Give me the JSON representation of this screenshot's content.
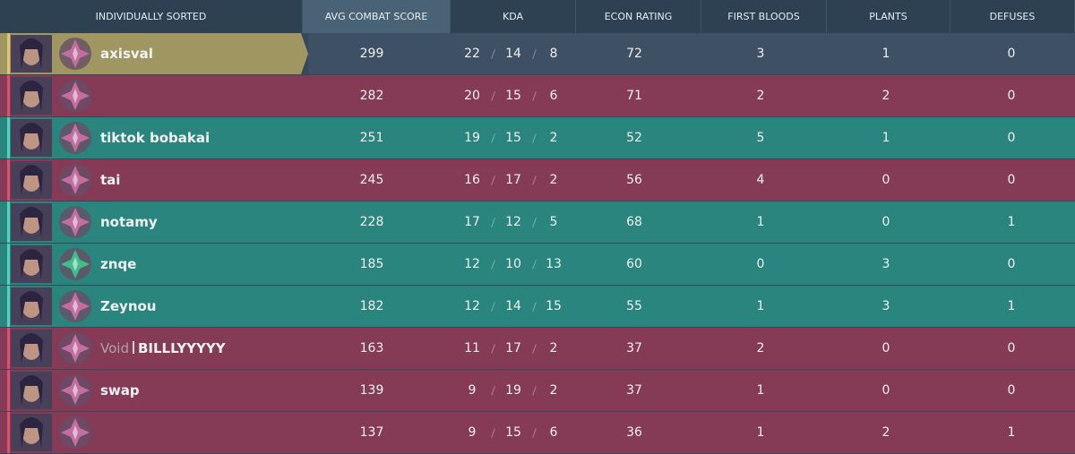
{
  "header": {
    "columns": [
      "INDIVIDUALLY SORTED",
      "AVG COMBAT SCORE",
      "KDA",
      "ECON RATING",
      "FIRST BLOODS",
      "PLANTS",
      "DEFUSES"
    ]
  },
  "rows": [
    {
      "name": "axisval",
      "acs": 299,
      "kda": [
        22,
        14,
        8
      ],
      "econ": 72,
      "first_bloods": 3,
      "plants": 1,
      "defuses": 0,
      "color": "#a89c62"
    },
    {
      "name": null,
      "acs": 282,
      "kda": [
        20,
        15,
        6
      ],
      "econ": 71,
      "first_bloods": 2,
      "plants": 2,
      "defuses": 0,
      "color": "#8c3a55"
    },
    {
      "name": "tiktok bobakai",
      "acs": 251,
      "kda": [
        19,
        15,
        2
      ],
      "econ": 52,
      "first_bloods": 5,
      "plants": 1,
      "defuses": 0,
      "color": "#2a8a82"
    },
    {
      "name": "tai",
      "acs": 245,
      "kda": [
        16,
        17,
        2
      ],
      "econ": 56,
      "first_bloods": 4,
      "plants": 0,
      "defuses": 0,
      "color": "#8c3a55"
    },
    {
      "name": "notamy",
      "acs": 228,
      "kda": [
        17,
        12,
        5
      ],
      "econ": 68,
      "first_bloods": 1,
      "plants": 0,
      "defuses": 1,
      "color": "#2a8a82"
    },
    {
      "name": "znqe",
      "acs": 185,
      "kda": [
        12,
        10,
        13
      ],
      "econ": 60,
      "first_bloods": 0,
      "plants": 3,
      "defuses": 0,
      "color": "#2a8a82"
    },
    {
      "name": "Zeynou",
      "acs": 182,
      "kda": [
        12,
        14,
        15
      ],
      "econ": 55,
      "first_bloods": 1,
      "plants": 3,
      "defuses": 1,
      "color": "#2a8a82"
    },
    {
      "tag": "Void",
      "name": "BILLLYYYYY",
      "acs": 163,
      "kda": [
        11,
        17,
        2
      ],
      "econ": 37,
      "first_bloods": 2,
      "plants": 0,
      "defuses": 0,
      "color": "#8c3a55"
    },
    {
      "name": "swap",
      "acs": 139,
      "kda": [
        9,
        19,
        2
      ],
      "econ": 37,
      "first_bloods": 1,
      "plants": 0,
      "defuses": 0,
      "color": "#8c3a55"
    },
    {
      "name": null,
      "acs": 137,
      "kda": [
        9,
        15,
        6
      ],
      "econ": 36,
      "first_bloods": 1,
      "plants": 2,
      "defuses": 1,
      "color": "#8c3a55"
    }
  ]
}
